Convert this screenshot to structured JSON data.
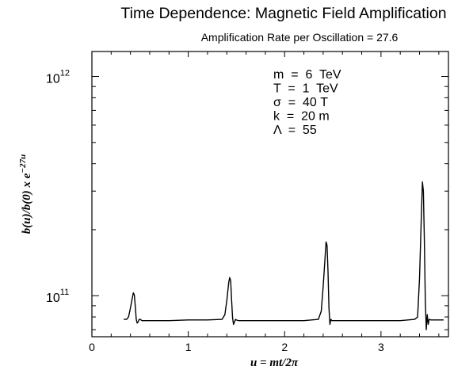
{
  "chart_data": {
    "type": "line",
    "title": "Time Dependence: Magnetic Field Amplification",
    "subtitle": "Amplification Rate per Oscillation = 27.6",
    "xlabel": "u = mt/2π",
    "ylabel": "b(u)/b(0) x e",
    "ylabel_exponent": "−27u",
    "xlim": [
      0,
      3.7
    ],
    "ylim": [
      65000000000,
      1300000000000
    ],
    "yscale": "log",
    "x_ticks": [
      {
        "value": 0,
        "label": "0"
      },
      {
        "value": 1,
        "label": "1"
      },
      {
        "value": 2,
        "label": "2"
      },
      {
        "value": 3,
        "label": "3"
      }
    ],
    "y_ticks": [
      {
        "value": 100000000000,
        "base": "10",
        "exp": "11"
      },
      {
        "value": 1000000000000,
        "base": "10",
        "exp": "12"
      }
    ],
    "annotations": [
      "m  =  6  TeV",
      "T  =  1  TeV",
      "σ  =  40 T",
      "k  =  20 m",
      "Λ  =  55"
    ],
    "series": [
      {
        "color": "#000000",
        "x": [
          0.33,
          0.36,
          0.38,
          0.4,
          0.42,
          0.43,
          0.44,
          0.45,
          0.46,
          0.47,
          0.48,
          0.49,
          0.5,
          0.52,
          0.55,
          0.65,
          0.8,
          1.0,
          1.2,
          1.35,
          1.38,
          1.4,
          1.42,
          1.43,
          1.44,
          1.45,
          1.46,
          1.47,
          1.48,
          1.49,
          1.5,
          1.52,
          1.55,
          1.65,
          1.8,
          2.0,
          2.2,
          2.35,
          2.38,
          2.4,
          2.42,
          2.43,
          2.44,
          2.45,
          2.46,
          2.47,
          2.48,
          2.49,
          2.5,
          2.52,
          2.55,
          2.65,
          2.8,
          3.0,
          3.2,
          3.35,
          3.38,
          3.4,
          3.42,
          3.43,
          3.44,
          3.45,
          3.46,
          3.47,
          3.48,
          3.49,
          3.5,
          3.52,
          3.55,
          3.6,
          3.65
        ],
        "y": [
          78000000000,
          78000000000,
          80000000000,
          88000000000,
          98000000000,
          103000000000,
          101000000000,
          90000000000,
          78000000000,
          75000000000,
          76000000000,
          78000000000,
          78000000000,
          77000000000,
          77000000000,
          77000000000,
          77000000000,
          77500000000,
          77500000000,
          78000000000,
          82000000000,
          95000000000,
          115000000000,
          121000000000,
          117000000000,
          95000000000,
          79000000000,
          74000000000,
          76000000000,
          78000000000,
          77500000000,
          77000000000,
          77000000000,
          77000000000,
          77000000000,
          77000000000,
          77000000000,
          78000000000,
          85000000000,
          110000000000,
          150000000000,
          176000000000,
          170000000000,
          130000000000,
          88000000000,
          74000000000,
          78000000000,
          77000000000,
          77000000000,
          77000000000,
          77000000000,
          77000000000,
          77000000000,
          77000000000,
          77000000000,
          78000000000,
          80000000000,
          120000000000,
          240000000000,
          330000000000,
          300000000000,
          180000000000,
          95000000000,
          70000000000,
          82000000000,
          74000000000,
          78000000000,
          77500000000,
          77500000000,
          77500000000,
          77500000000
        ]
      }
    ],
    "grid": false
  }
}
